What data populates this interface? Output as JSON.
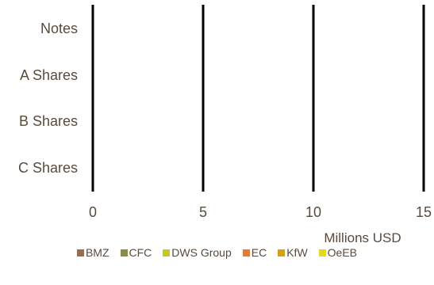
{
  "chart_data": {
    "type": "bar",
    "orientation": "horizontal",
    "stacked": true,
    "categories": [
      "Notes",
      "A Shares",
      "B Shares",
      "C Shares"
    ],
    "series": [
      {
        "name": "BMZ",
        "color": "#9b6b4a",
        "values": [
          0,
          0,
          0,
          0
        ]
      },
      {
        "name": "CFC",
        "color": "#8c8c4a",
        "values": [
          0,
          0,
          0,
          0
        ]
      },
      {
        "name": "DWS Group",
        "color": "#c8c81e",
        "values": [
          0,
          0,
          0,
          0
        ]
      },
      {
        "name": "EC",
        "color": "#e07b39",
        "values": [
          0,
          0,
          0,
          0
        ]
      },
      {
        "name": "KfW",
        "color": "#d4a017",
        "values": [
          0,
          0,
          0,
          0
        ]
      },
      {
        "name": "OeEB",
        "color": "#e8d81a",
        "values": [
          0,
          0,
          0,
          0
        ]
      }
    ],
    "xlim": [
      0,
      15
    ],
    "xticks": [
      "0",
      "5",
      "10",
      "15"
    ],
    "xlabel": "Millions USD",
    "grid": "vertical",
    "legend": "bottom"
  }
}
